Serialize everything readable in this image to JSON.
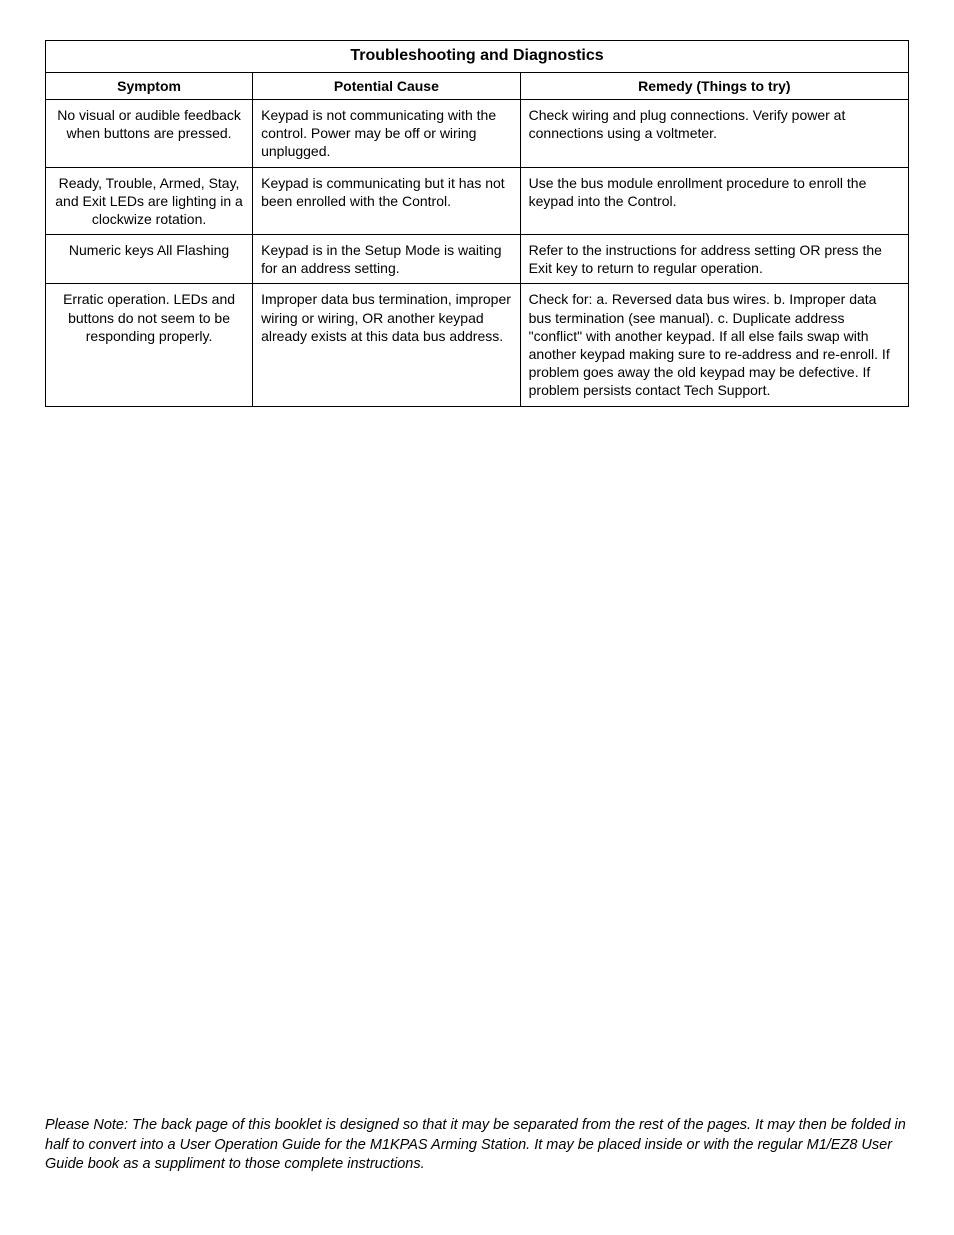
{
  "table": {
    "title": "Troubleshooting and Diagnostics",
    "columns": [
      "Symptom",
      "Potential Cause",
      "Remedy (Things to try)"
    ],
    "rows": [
      {
        "symptom": "No visual or audible feedback when buttons are pressed.",
        "cause": "Keypad is not communicating with the control.  Power may be off or wiring unplugged.",
        "remedy": "Check wiring and plug connections.  Verify power at connections using a voltmeter."
      },
      {
        "symptom": "Ready, Trouble, Armed, Stay, and Exit LEDs are lighting in a clockwize rotation.",
        "cause": "Keypad is communicating but it has not been enrolled with the Control.",
        "remedy": "Use the bus module enrollment procedure to enroll the keypad into the Control."
      },
      {
        "symptom": "Numeric keys All Flashing",
        "cause": "Keypad is in the Setup Mode is waiting for an address setting.",
        "remedy": "Refer to the instructions for address setting OR press the Exit key to return to regular operation."
      },
      {
        "symptom": "Erratic operation.  LEDs and buttons do not seem to be responding properly.",
        "cause": "Improper data bus termination, improper wiring or wiring, OR another keypad already exists at this data bus address.",
        "remedy": "Check for:  a. Reversed data bus wires.  b. Improper data bus termination (see manual).  c. Duplicate address \"conflict\" with another keypad.  If all else fails swap with another keypad making sure to re-address and re-enroll.  If problem goes away the old keypad may be defective.  If problem persists contact Tech Support."
      }
    ]
  },
  "note": "Please Note: The back page of this booklet is designed so that it may be separated from the rest of the pages. It may then be folded in half to convert into a User Operation Guide for the M1KPAS Arming Station.  It may be placed inside or with the regular M1/EZ8 User Guide book as a suppliment to those complete instructions."
}
